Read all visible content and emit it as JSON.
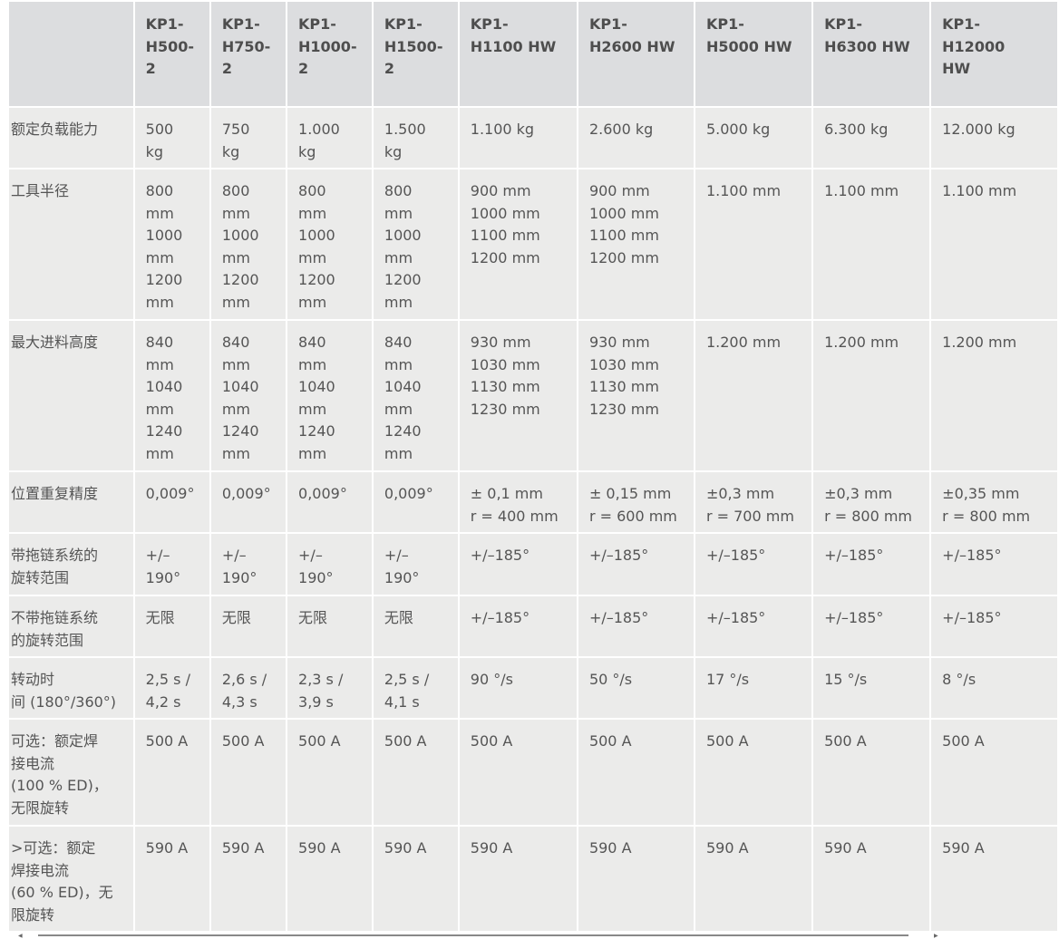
{
  "table": {
    "header": [
      "",
      "KP1-\nH500-\n2",
      "KP1-\nH750-\n2",
      "KP1-\nH1000-\n2",
      "KP1-\nH1500-\n2",
      "KP1-\nH1100 HW",
      "KP1-\nH2600 HW",
      "KP1-\nH5000 HW",
      "KP1-\nH6300 HW",
      "KP1-\nH12000\nHW"
    ],
    "rows": [
      [
        "额定负载能力",
        "500\nkg",
        "750\nkg",
        "1.000\nkg",
        "1.500\nkg",
        "1.100 kg",
        "2.600 kg",
        "5.000 kg",
        "6.300 kg",
        "12.000 kg"
      ],
      [
        "工具半径",
        "800\nmm\n1000\nmm\n1200\nmm",
        "800\nmm\n1000\nmm\n1200\nmm",
        "800\nmm\n1000\nmm\n1200\nmm",
        "800\nmm\n1000\nmm\n1200\nmm",
        "900 mm\n1000 mm\n1100 mm\n1200 mm",
        "900 mm\n1000 mm\n1100 mm\n1200 mm",
        "1.100 mm",
        "1.100 mm",
        "1.100 mm"
      ],
      [
        "最大进料高度",
        "840\nmm\n1040\nmm\n1240\nmm",
        "840\nmm\n1040\nmm\n1240\nmm",
        "840\nmm\n1040\nmm\n1240\nmm",
        "840\nmm\n1040\nmm\n1240\nmm",
        "930 mm\n1030 mm\n1130 mm\n1230 mm",
        "930 mm\n1030 mm\n1130 mm\n1230 mm",
        "1.200 mm",
        "1.200 mm",
        "1.200 mm"
      ],
      [
        "位置重复精度",
        "0,009°",
        "0,009°",
        "0,009°",
        "0,009°",
        "± 0,1 mm\nr = 400 mm",
        "± 0,15 mm\nr = 600 mm",
        "±0,3 mm\nr = 700 mm",
        "±0,3 mm\nr = 800 mm",
        "±0,35 mm\nr = 800 mm"
      ],
      [
        "带拖链系统的\n旋转范围",
        "+/–\n190°",
        "+/–\n190°",
        "+/–\n190°",
        "+/–\n190°",
        "+/–185°",
        "+/–185°",
        "+/–185°",
        "+/–185°",
        "+/–185°"
      ],
      [
        "不带拖链系统\n的旋转范围",
        "无限",
        "无限",
        "无限",
        "无限",
        "+/–185°",
        "+/–185°",
        "+/–185°",
        "+/–185°",
        "+/–185°"
      ],
      [
        "转动时\n间 (180°/360°)",
        "2,5 s /\n4,2 s",
        "2,6 s /\n4,3 s",
        "2,3 s /\n3,9 s",
        "2,5 s /\n4,1 s",
        "90 °/s",
        "50 °/s",
        "17 °/s",
        "15 °/s",
        "8 °/s"
      ],
      [
        "可选：额定焊\n接电流\n(100 % ED)，\n无限旋转",
        "500 A",
        "500 A",
        "500 A",
        "500 A",
        "500 A",
        "500 A",
        "500 A",
        "500 A",
        "500 A"
      ],
      [
        ">可选：额定\n焊接电流\n(60 % ED)，无\n限旋转",
        "590 A",
        "590 A",
        "590 A",
        "590 A",
        "590 A",
        "590 A",
        "590 A",
        "590 A",
        "590 A"
      ]
    ]
  },
  "colors": {
    "header_bg": "#dcdddf",
    "cell_bg": "#ebebea",
    "text": "#555555"
  }
}
